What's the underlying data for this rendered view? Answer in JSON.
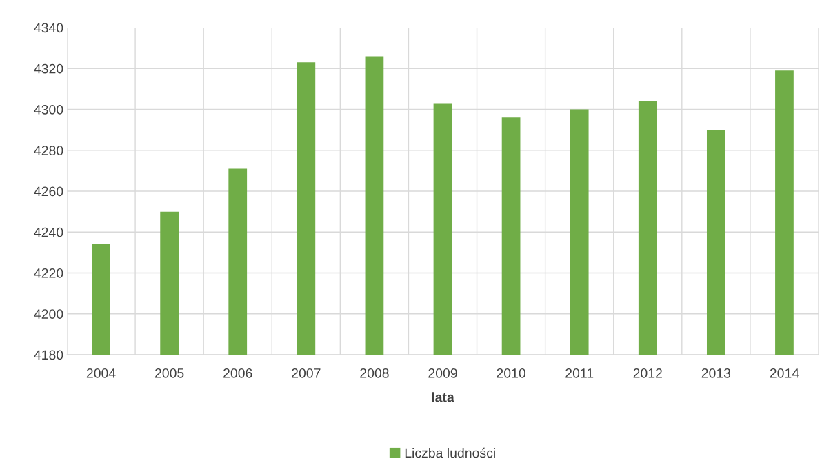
{
  "chart_data": {
    "type": "bar",
    "xlabel": "lata",
    "categories": [
      "2004",
      "2005",
      "2006",
      "2007",
      "2008",
      "2009",
      "2010",
      "2011",
      "2012",
      "2013",
      "2014"
    ],
    "series": [
      {
        "name": "Liczba ludności",
        "color": "#70ad47",
        "values": [
          4234,
          4250,
          4271,
          4323,
          4326,
          4303,
          4296,
          4300,
          4304,
          4290,
          4319
        ]
      }
    ],
    "ylim": [
      4180,
      4340
    ],
    "yticks": [
      4180,
      4200,
      4220,
      4240,
      4260,
      4280,
      4300,
      4320,
      4340
    ],
    "grid": true,
    "legend": "bottom"
  }
}
